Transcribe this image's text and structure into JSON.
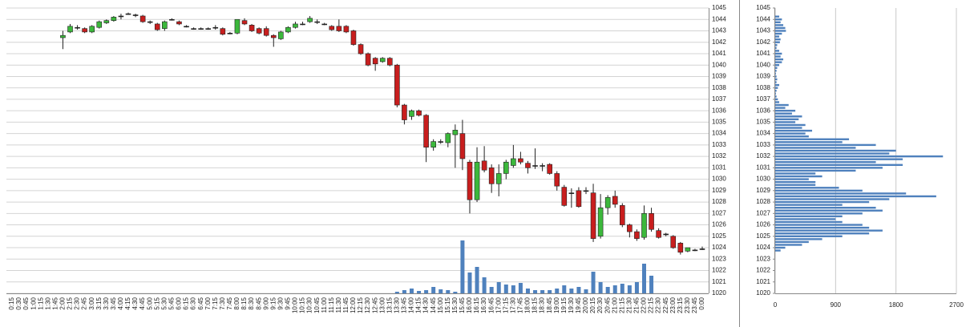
{
  "chart_data": [
    {
      "type": "candlestick",
      "categories": [
        "0:15",
        "0:30",
        "0:45",
        "1:00",
        "1:15",
        "1:30",
        "1:45",
        "2:00",
        "2:15",
        "2:30",
        "2:45",
        "3:00",
        "3:15",
        "3:30",
        "3:45",
        "4:00",
        "4:15",
        "4:30",
        "4:45",
        "5:00",
        "5:15",
        "5:30",
        "5:45",
        "6:00",
        "6:15",
        "6:30",
        "6:45",
        "7:00",
        "7:15",
        "7:30",
        "7:45",
        "8:00",
        "8:15",
        "8:30",
        "8:45",
        "9:00",
        "9:15",
        "9:30",
        "9:45",
        "10:00",
        "10:15",
        "10:30",
        "10:45",
        "11:00",
        "11:15",
        "11:30",
        "11:45",
        "12:00",
        "12:15",
        "12:30",
        "12:45",
        "13:00",
        "13:15",
        "13:30",
        "13:45",
        "14:00",
        "14:15",
        "14:30",
        "14:45",
        "15:00",
        "15:15",
        "15:30",
        "15:45",
        "16:00",
        "16:15",
        "16:30",
        "16:45",
        "17:00",
        "17:15",
        "17:30",
        "17:45",
        "18:00",
        "18:15",
        "18:30",
        "18:45",
        "19:00",
        "19:15",
        "19:30",
        "19:45",
        "20:00",
        "20:15",
        "20:30",
        "20:45",
        "21:00",
        "21:15",
        "21:30",
        "21:45",
        "22:00",
        "22:15",
        "22:30",
        "22:45",
        "23:00",
        "23:15",
        "23:30",
        "23:45",
        "0:00"
      ],
      "open": [
        null,
        null,
        null,
        null,
        null,
        null,
        null,
        1042.4,
        1042.9,
        1043.3,
        1043.2,
        1042.9,
        1043.3,
        1043.7,
        1043.9,
        1044.3,
        1044.5,
        1044.4,
        1044.3,
        1043.8,
        1043.6,
        1043.2,
        1044.0,
        1043.8,
        1043.4,
        1043.2,
        1043.2,
        1043.2,
        1043.3,
        1043.2,
        1042.8,
        1042.8,
        1043.9,
        1043.5,
        1043.2,
        1043.2,
        1042.6,
        1042.3,
        1042.9,
        1043.3,
        1043.6,
        1043.8,
        1043.8,
        1043.6,
        1043.4,
        1043.4,
        1043.4,
        1043.0,
        1041.8,
        1041.0,
        1040.6,
        1040.3,
        1040.6,
        1040.0,
        1036.5,
        1035.5,
        1036.0,
        1035.6,
        1032.8,
        1033.3,
        1033.2,
        1033.9,
        1034.0,
        1031.5,
        1028.2,
        1031.6,
        1031.0,
        1029.6,
        1030.5,
        1031.2,
        1031.8,
        1031.4,
        1031.2,
        1031.2,
        1031.3,
        1030.5,
        1029.3,
        1028.8,
        1029.0,
        1029.0,
        1028.8,
        1025.0,
        1027.5,
        1028.5,
        1027.7,
        1026.0,
        1025.4,
        1024.9,
        1027.0,
        1025.5,
        1025.2,
        1025.0,
        1024.4,
        1023.7,
        1023.8,
        1023.9
      ],
      "high": [
        null,
        null,
        null,
        null,
        null,
        null,
        null,
        1043.0,
        1043.6,
        1043.5,
        1043.3,
        1043.5,
        1043.9,
        1044.0,
        1044.3,
        1044.5,
        1044.6,
        1044.5,
        1044.4,
        1043.9,
        1043.7,
        1043.9,
        1044.1,
        1043.9,
        1043.5,
        1043.3,
        1043.3,
        1043.3,
        1043.5,
        1043.3,
        1042.9,
        1044.0,
        1044.1,
        1043.6,
        1043.3,
        1043.4,
        1042.7,
        1043.0,
        1043.4,
        1043.8,
        1043.8,
        1044.3,
        1044.0,
        1043.7,
        1043.5,
        1044.0,
        1043.5,
        1043.1,
        1041.9,
        1041.1,
        1040.7,
        1040.7,
        1040.7,
        1040.1,
        1036.6,
        1036.1,
        1036.1,
        1035.7,
        1033.5,
        1033.5,
        1034.1,
        1034.8,
        1035.2,
        1031.7,
        1032.8,
        1032.9,
        1031.3,
        1031.3,
        1031.7,
        1033.0,
        1032.4,
        1031.6,
        1032.7,
        1031.4,
        1031.4,
        1030.7,
        1029.5,
        1029.2,
        1029.3,
        1029.3,
        1029.6,
        1028.7,
        1028.6,
        1029.0,
        1027.9,
        1026.1,
        1025.6,
        1027.7,
        1027.5,
        1025.7,
        1025.3,
        1025.1,
        1024.5,
        1024.0,
        1023.9,
        1024.1
      ],
      "low": [
        null,
        null,
        null,
        null,
        null,
        null,
        null,
        1041.4,
        1042.8,
        1043.1,
        1042.8,
        1042.8,
        1043.2,
        1043.6,
        1043.8,
        1044.0,
        1044.4,
        1044.2,
        1043.7,
        1043.6,
        1043.0,
        1043.0,
        1043.9,
        1043.5,
        1043.3,
        1043.1,
        1043.1,
        1043.1,
        1043.1,
        1042.6,
        1042.7,
        1042.7,
        1043.5,
        1042.9,
        1042.7,
        1042.5,
        1041.6,
        1042.2,
        1042.8,
        1043.2,
        1043.5,
        1043.7,
        1043.6,
        1043.5,
        1043.0,
        1042.9,
        1042.8,
        1041.7,
        1040.9,
        1039.9,
        1039.5,
        1040.2,
        1039.9,
        1036.3,
        1034.8,
        1035.2,
        1035.5,
        1031.5,
        1032.5,
        1033.1,
        1032.8,
        1031.0,
        1030.8,
        1027.0,
        1028.0,
        1030.6,
        1028.8,
        1028.5,
        1030.0,
        1031.0,
        1031.3,
        1030.5,
        1030.9,
        1030.7,
        1030.4,
        1029.0,
        1027.6,
        1027.5,
        1027.5,
        1028.7,
        1024.5,
        1024.8,
        1026.9,
        1027.5,
        1025.8,
        1024.9,
        1024.6,
        1024.7,
        1025.4,
        1024.8,
        1025.0,
        1023.9,
        1023.4,
        1023.6,
        1023.7,
        1023.8
      ],
      "close": [
        null,
        null,
        null,
        null,
        null,
        null,
        null,
        1042.6,
        1043.4,
        1043.3,
        1042.9,
        1043.4,
        1043.8,
        1043.9,
        1044.2,
        1044.3,
        1044.5,
        1044.4,
        1043.8,
        1043.8,
        1043.1,
        1043.8,
        1044.0,
        1043.6,
        1043.4,
        1043.2,
        1043.2,
        1043.2,
        1043.3,
        1042.7,
        1042.8,
        1044.0,
        1043.6,
        1043.0,
        1042.8,
        1042.6,
        1042.4,
        1042.9,
        1043.3,
        1043.6,
        1043.6,
        1044.1,
        1043.8,
        1043.6,
        1043.1,
        1043.0,
        1042.9,
        1041.8,
        1041.0,
        1040.0,
        1040.1,
        1040.6,
        1040.0,
        1036.5,
        1035.2,
        1036.0,
        1035.6,
        1032.8,
        1033.3,
        1033.3,
        1034.0,
        1034.3,
        1031.8,
        1028.2,
        1031.5,
        1030.8,
        1029.6,
        1030.5,
        1031.5,
        1031.8,
        1031.5,
        1031.0,
        1031.2,
        1031.2,
        1030.5,
        1029.4,
        1027.7,
        1028.8,
        1027.6,
        1029.0,
        1024.8,
        1027.5,
        1028.4,
        1027.8,
        1026.0,
        1025.4,
        1024.8,
        1027.0,
        1025.6,
        1024.9,
        1025.2,
        1024.0,
        1023.6,
        1024.0,
        1023.8,
        1023.9
      ],
      "volume": [
        null,
        null,
        null,
        null,
        null,
        null,
        null,
        0,
        0,
        0,
        0,
        0,
        0,
        0,
        0,
        0,
        0,
        0,
        0,
        0,
        0,
        0,
        0,
        0,
        0,
        0,
        0,
        0,
        0,
        0,
        0,
        0,
        0,
        0,
        0,
        0,
        0,
        0,
        0,
        0,
        0,
        0,
        0,
        0,
        0,
        0,
        0,
        0,
        0,
        0,
        0,
        0,
        0,
        2,
        4,
        6,
        3,
        4,
        8,
        5,
        4,
        2,
        66,
        26,
        33,
        20,
        8,
        14,
        11,
        10,
        13,
        6,
        4,
        4,
        4,
        6,
        10,
        6,
        8,
        5,
        27,
        14,
        8,
        10,
        12,
        10,
        14,
        37,
        22,
        0,
        0,
        0,
        0,
        0,
        0,
        0
      ],
      "up_color": "#3cb83c",
      "down_color": "#c81e1e",
      "doji_color": "#222222",
      "volume_color": "#4f81bd",
      "ylim": [
        1020,
        1045
      ],
      "yticks": [
        1020,
        1021,
        1022,
        1023,
        1024,
        1025,
        1026,
        1027,
        1028,
        1029,
        1030,
        1031,
        1032,
        1033,
        1034,
        1035,
        1036,
        1037,
        1038,
        1039,
        1040,
        1041,
        1042,
        1043,
        1044,
        1045
      ],
      "grid": true
    },
    {
      "type": "hbar",
      "y": [
        1044.25,
        1044.0,
        1043.75,
        1043.5,
        1043.25,
        1043.0,
        1042.75,
        1042.5,
        1042.25,
        1042.0,
        1041.75,
        1041.5,
        1041.25,
        1041.0,
        1040.75,
        1040.5,
        1040.25,
        1040.0,
        1039.75,
        1039.5,
        1039.25,
        1039.0,
        1038.75,
        1038.5,
        1038.25,
        1038.0,
        1037.75,
        1037.5,
        1037.25,
        1037.0,
        1036.75,
        1036.5,
        1036.25,
        1036.0,
        1035.75,
        1035.5,
        1035.25,
        1035.0,
        1034.75,
        1034.5,
        1034.25,
        1034.0,
        1033.75,
        1033.5,
        1033.25,
        1033.0,
        1032.75,
        1032.5,
        1032.25,
        1032.0,
        1031.75,
        1031.5,
        1031.25,
        1031.0,
        1030.75,
        1030.5,
        1030.25,
        1030.0,
        1029.75,
        1029.5,
        1029.25,
        1029.0,
        1028.75,
        1028.5,
        1028.25,
        1028.0,
        1027.75,
        1027.5,
        1027.25,
        1027.0,
        1026.75,
        1026.5,
        1026.25,
        1026.0,
        1025.75,
        1025.5,
        1025.25,
        1025.0,
        1024.75,
        1024.5,
        1024.25,
        1024.0,
        1023.75
      ],
      "values": [
        60,
        100,
        80,
        120,
        150,
        160,
        100,
        60,
        80,
        70,
        30,
        20,
        60,
        100,
        80,
        120,
        100,
        60,
        30,
        20,
        10,
        20,
        30,
        20,
        60,
        40,
        20,
        10,
        20,
        40,
        60,
        200,
        150,
        300,
        250,
        400,
        350,
        300,
        450,
        400,
        550,
        450,
        500,
        1100,
        1000,
        1500,
        1200,
        1800,
        1700,
        2500,
        1900,
        1500,
        1900,
        1600,
        1200,
        600,
        700,
        500,
        600,
        600,
        950,
        1300,
        1950,
        2400,
        1700,
        1400,
        1000,
        1500,
        1600,
        1300,
        1000,
        900,
        1000,
        1300,
        1400,
        1600,
        1400,
        1000,
        700,
        500,
        400,
        150,
        80
      ],
      "color": "#4f81bd",
      "ylim": [
        1020,
        1045
      ],
      "yticks": [
        1020,
        1021,
        1022,
        1023,
        1024,
        1025,
        1026,
        1027,
        1028,
        1029,
        1030,
        1031,
        1032,
        1033,
        1034,
        1035,
        1036,
        1037,
        1038,
        1039,
        1040,
        1041,
        1042,
        1043,
        1044,
        1045
      ],
      "xlim": [
        0,
        2700
      ],
      "xticks": [
        0,
        900,
        1800,
        2700
      ],
      "grid": true
    }
  ]
}
